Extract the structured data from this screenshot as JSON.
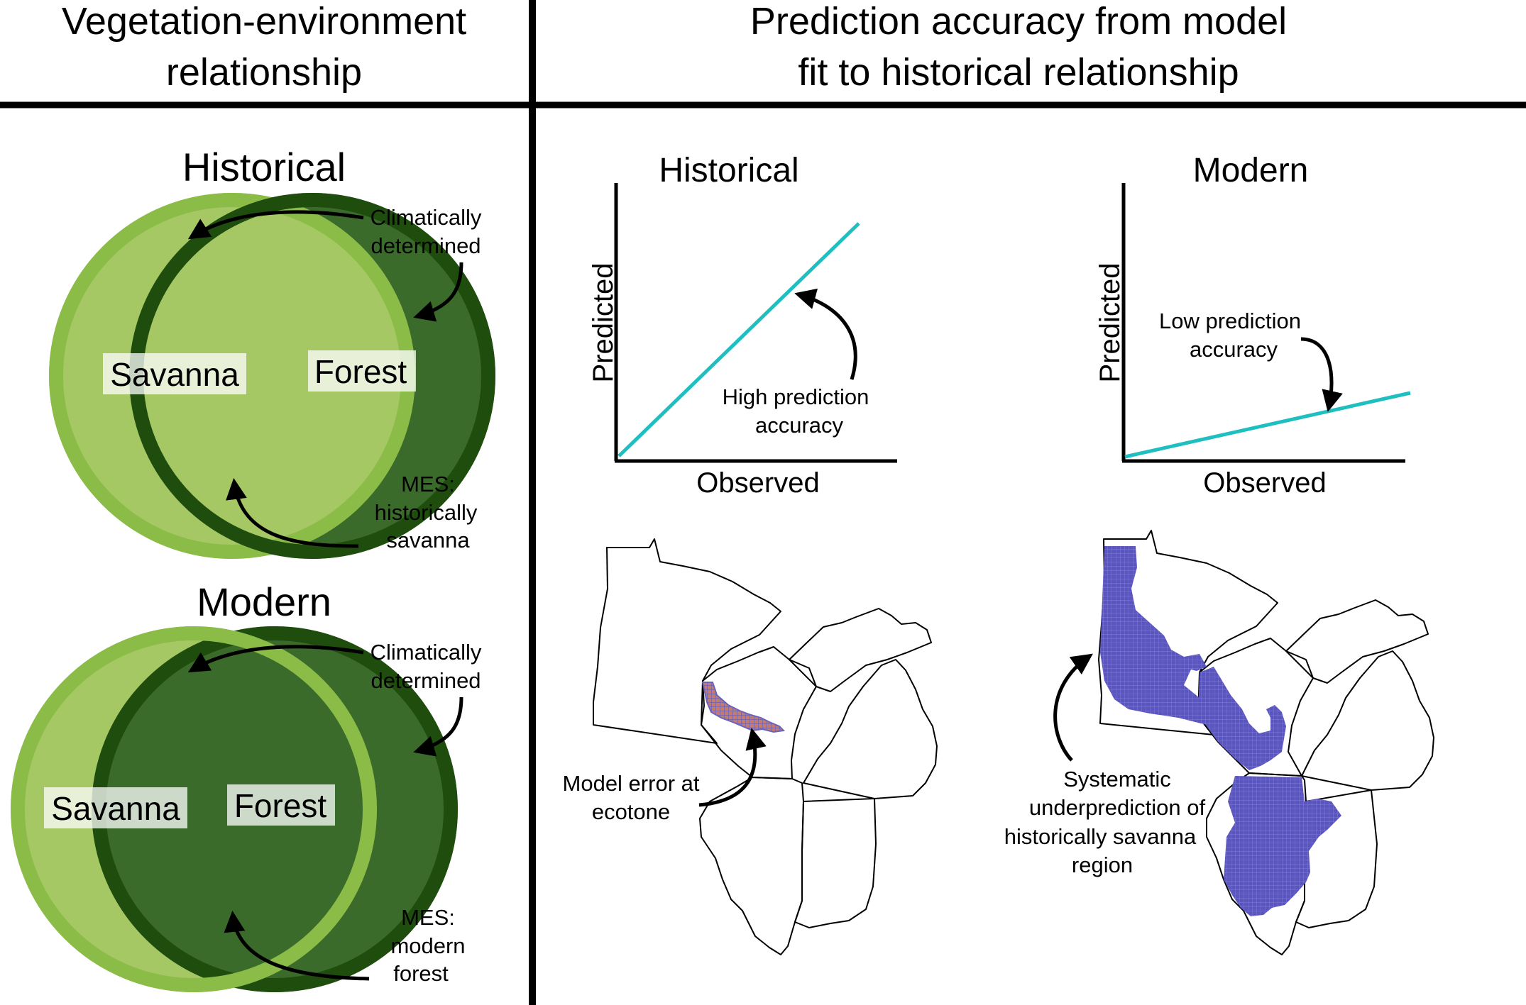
{
  "headers": {
    "left": [
      "Vegetation-environment",
      "relationship"
    ],
    "right": [
      "Prediction accuracy from model",
      "fit to historical relationship"
    ]
  },
  "left_panel": {
    "historical": {
      "title": "Historical",
      "circle_labels": {
        "savanna": "Savanna",
        "forest": "Forest"
      },
      "annotation_top": [
        "Climatically",
        "determined"
      ],
      "annotation_bottom": [
        "MES:",
        "historically",
        "savanna"
      ]
    },
    "modern": {
      "title": "Modern",
      "circle_labels": {
        "savanna": "Savanna",
        "forest": "Forest"
      },
      "annotation_top": [
        "Climatically",
        "determined"
      ],
      "annotation_bottom": [
        "MES:",
        "modern",
        "forest"
      ]
    }
  },
  "plots": {
    "historical": {
      "title": "Historical",
      "xlabel": "Observed",
      "ylabel": "Predicted",
      "annotation": [
        "High prediction",
        "accuracy"
      ]
    },
    "modern": {
      "title": "Modern",
      "xlabel": "Observed",
      "ylabel": "Predicted",
      "annotation": [
        "Low prediction",
        "accuracy"
      ]
    }
  },
  "maps": {
    "historical": {
      "annotation": [
        "Model error at",
        "ecotone"
      ]
    },
    "modern": {
      "annotation": [
        "Systematic",
        "underprediction of",
        "historically savanna",
        "region"
      ]
    }
  },
  "colors": {
    "savanna_fill": "#a5c865",
    "savanna_ring": "#8cbc48",
    "forest_fill": "#3b6b2a",
    "forest_ring": "#1f4d0e",
    "line": "#1fbfc1",
    "error_fill": "#c97a66",
    "error_cell": "#6b63b8",
    "underprediction": "#5a55c0"
  }
}
